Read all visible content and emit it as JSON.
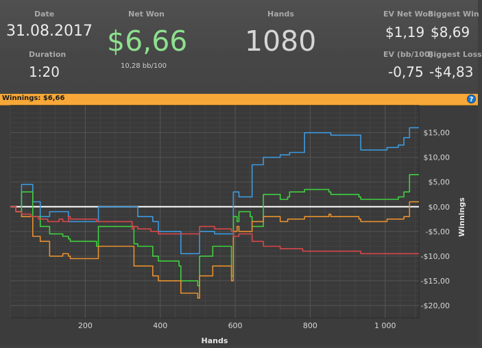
{
  "stats": {
    "date_label": "Date",
    "date_value": "31.08.2017",
    "duration_label": "Duration",
    "duration_value": "1:20",
    "net_won_label": "Net Won",
    "net_won_value": "$6,66",
    "net_won_sub": "10,28 bb/100",
    "hands_label": "Hands",
    "hands_value": "1080",
    "ev_net_won_label": "EV Net Won",
    "ev_net_won_value": "$1,19",
    "biggest_win_label": "Biggest Win",
    "biggest_win_value": "$8,69",
    "ev_bb_label": "EV (bb/100)",
    "ev_bb_value": "-0,75",
    "biggest_loss_label": "Biggest Loss",
    "biggest_loss_value": "-$4,83"
  },
  "winnings_bar": {
    "label": "Winnings: $6,66",
    "help_icon": "question-icon",
    "color": "#f7a838"
  },
  "colors": {
    "net_won": "#8ee08e",
    "blue": "#3d9ae0",
    "green": "#3fd13f",
    "orange": "#e8912f",
    "red": "#d9474a",
    "zero_line": "#ffffff"
  },
  "chart_data": {
    "type": "line",
    "xlabel": "Hands",
    "ylabel": "Winnings",
    "xlim": [
      0,
      1090
    ],
    "ylim": [
      -22.5,
      20.5
    ],
    "x_ticks": [
      200,
      400,
      600,
      800,
      1000
    ],
    "x_tick_labels": [
      "200",
      "400",
      "600",
      "800",
      "1 000"
    ],
    "y_ticks": [
      15,
      10,
      5,
      0,
      -5,
      -10,
      -15,
      -20
    ],
    "y_tick_labels": [
      "$15,00",
      "$10,00",
      "$5,00",
      "$0,00",
      "-$5,00",
      "-$10,00",
      "-$15,00",
      "-$20,00"
    ],
    "grid": true,
    "series": [
      {
        "color": "#3d9ae0",
        "points": [
          [
            0,
            0
          ],
          [
            15,
            -1
          ],
          [
            30,
            4.5
          ],
          [
            55,
            4.5
          ],
          [
            60,
            1
          ],
          [
            75,
            1
          ],
          [
            80,
            -2
          ],
          [
            100,
            -2
          ],
          [
            105,
            -1
          ],
          [
            130,
            -1
          ],
          [
            140,
            -1
          ],
          [
            155,
            -3
          ],
          [
            160,
            -3
          ],
          [
            230,
            -3
          ],
          [
            235,
            0
          ],
          [
            325,
            0
          ],
          [
            330,
            0
          ],
          [
            340,
            -2
          ],
          [
            375,
            -2
          ],
          [
            380,
            -3
          ],
          [
            390,
            -3
          ],
          [
            395,
            -5
          ],
          [
            450,
            -5
          ],
          [
            455,
            -9.5
          ],
          [
            500,
            -9.5
          ],
          [
            505,
            -5
          ],
          [
            540,
            -5
          ],
          [
            545,
            -5.5
          ],
          [
            590,
            -5.5
          ],
          [
            595,
            3
          ],
          [
            605,
            3
          ],
          [
            610,
            2
          ],
          [
            640,
            2
          ],
          [
            645,
            8.5
          ],
          [
            670,
            8.5
          ],
          [
            675,
            10
          ],
          [
            715,
            10
          ],
          [
            720,
            10.5
          ],
          [
            740,
            10.5
          ],
          [
            745,
            11
          ],
          [
            780,
            11
          ],
          [
            785,
            15
          ],
          [
            850,
            15
          ],
          [
            855,
            14.5
          ],
          [
            930,
            14.5
          ],
          [
            935,
            11.5
          ],
          [
            1000,
            11.5
          ],
          [
            1005,
            12
          ],
          [
            1030,
            12
          ],
          [
            1035,
            12.5
          ],
          [
            1045,
            12.5
          ],
          [
            1050,
            14
          ],
          [
            1060,
            14
          ],
          [
            1065,
            16
          ],
          [
            1090,
            16
          ]
        ]
      },
      {
        "color": "#3fd13f",
        "points": [
          [
            0,
            0
          ],
          [
            15,
            -1
          ],
          [
            30,
            3
          ],
          [
            55,
            3
          ],
          [
            60,
            -2
          ],
          [
            75,
            -2
          ],
          [
            80,
            -4
          ],
          [
            100,
            -4
          ],
          [
            105,
            -5.5
          ],
          [
            130,
            -5.5
          ],
          [
            140,
            -6
          ],
          [
            155,
            -6.5
          ],
          [
            160,
            -7
          ],
          [
            230,
            -8
          ],
          [
            235,
            -4
          ],
          [
            325,
            -4
          ],
          [
            330,
            -7.5
          ],
          [
            340,
            -8
          ],
          [
            375,
            -8
          ],
          [
            380,
            -10
          ],
          [
            390,
            -10
          ],
          [
            395,
            -11
          ],
          [
            450,
            -12
          ],
          [
            455,
            -15
          ],
          [
            500,
            -16
          ],
          [
            505,
            -10
          ],
          [
            540,
            -8
          ],
          [
            545,
            -8
          ],
          [
            590,
            -14
          ],
          [
            595,
            -2
          ],
          [
            605,
            -3
          ],
          [
            610,
            -1
          ],
          [
            640,
            -2
          ],
          [
            645,
            -4
          ],
          [
            670,
            -4
          ],
          [
            675,
            2.5
          ],
          [
            715,
            2.5
          ],
          [
            720,
            1.5
          ],
          [
            740,
            2
          ],
          [
            745,
            3
          ],
          [
            780,
            3
          ],
          [
            785,
            3.5
          ],
          [
            850,
            3
          ],
          [
            855,
            2.5
          ],
          [
            930,
            2
          ],
          [
            935,
            1.5
          ],
          [
            1000,
            1.5
          ],
          [
            1005,
            1.5
          ],
          [
            1030,
            1.5
          ],
          [
            1035,
            2
          ],
          [
            1045,
            2
          ],
          [
            1050,
            3
          ],
          [
            1060,
            3
          ],
          [
            1065,
            6.5
          ],
          [
            1090,
            6.5
          ]
        ]
      },
      {
        "color": "#e8912f",
        "points": [
          [
            0,
            0
          ],
          [
            15,
            -1
          ],
          [
            30,
            -2
          ],
          [
            55,
            -2
          ],
          [
            60,
            -6
          ],
          [
            75,
            -6
          ],
          [
            80,
            -7
          ],
          [
            100,
            -7
          ],
          [
            105,
            -10
          ],
          [
            130,
            -10
          ],
          [
            140,
            -9.5
          ],
          [
            155,
            -10
          ],
          [
            160,
            -10.5
          ],
          [
            230,
            -10.5
          ],
          [
            235,
            -8
          ],
          [
            325,
            -8
          ],
          [
            330,
            -12
          ],
          [
            340,
            -12
          ],
          [
            375,
            -12
          ],
          [
            380,
            -14
          ],
          [
            390,
            -14
          ],
          [
            395,
            -15
          ],
          [
            450,
            -15
          ],
          [
            455,
            -17.5
          ],
          [
            500,
            -18.5
          ],
          [
            505,
            -14
          ],
          [
            540,
            -12
          ],
          [
            545,
            -12
          ],
          [
            590,
            -15
          ],
          [
            595,
            -5
          ],
          [
            605,
            -4
          ],
          [
            610,
            -5
          ],
          [
            640,
            -5
          ],
          [
            645,
            -3
          ],
          [
            670,
            -3
          ],
          [
            675,
            -2
          ],
          [
            715,
            -2
          ],
          [
            720,
            -3
          ],
          [
            740,
            -2.5
          ],
          [
            745,
            -2.5
          ],
          [
            780,
            -2.5
          ],
          [
            785,
            -2
          ],
          [
            850,
            -1.5
          ],
          [
            855,
            -2
          ],
          [
            930,
            -2.5
          ],
          [
            935,
            -3
          ],
          [
            1000,
            -3
          ],
          [
            1005,
            -2.5
          ],
          [
            1030,
            -2.5
          ],
          [
            1035,
            -2.5
          ],
          [
            1045,
            -2.5
          ],
          [
            1050,
            -2
          ],
          [
            1060,
            -2
          ],
          [
            1065,
            1
          ],
          [
            1090,
            1
          ]
        ]
      },
      {
        "color": "#d9474a",
        "points": [
          [
            0,
            0
          ],
          [
            15,
            -1
          ],
          [
            30,
            -1.5
          ],
          [
            55,
            -2
          ],
          [
            60,
            -2
          ],
          [
            75,
            -2.5
          ],
          [
            80,
            -2.5
          ],
          [
            100,
            -3
          ],
          [
            105,
            -3
          ],
          [
            130,
            -2.5
          ],
          [
            140,
            -3
          ],
          [
            155,
            -2
          ],
          [
            160,
            -2.5
          ],
          [
            230,
            -3
          ],
          [
            235,
            -3
          ],
          [
            325,
            -4.5
          ],
          [
            330,
            -4
          ],
          [
            340,
            -4.5
          ],
          [
            375,
            -5
          ],
          [
            380,
            -5
          ],
          [
            390,
            -5
          ],
          [
            395,
            -5.5
          ],
          [
            450,
            -5.5
          ],
          [
            455,
            -5.5
          ],
          [
            500,
            -5.5
          ],
          [
            505,
            -4
          ],
          [
            540,
            -4
          ],
          [
            545,
            -4.5
          ],
          [
            590,
            -5
          ],
          [
            595,
            -6
          ],
          [
            605,
            -6
          ],
          [
            610,
            -5.5
          ],
          [
            640,
            -5.5
          ],
          [
            645,
            -7
          ],
          [
            670,
            -7
          ],
          [
            675,
            -8
          ],
          [
            715,
            -8
          ],
          [
            720,
            -8.5
          ],
          [
            740,
            -8.5
          ],
          [
            745,
            -8.5
          ],
          [
            780,
            -9
          ],
          [
            785,
            -9
          ],
          [
            850,
            -9
          ],
          [
            855,
            -9
          ],
          [
            930,
            -9
          ],
          [
            935,
            -9.5
          ],
          [
            1000,
            -9.5
          ],
          [
            1005,
            -9.5
          ],
          [
            1030,
            -9.5
          ],
          [
            1035,
            -9.5
          ],
          [
            1045,
            -9.5
          ],
          [
            1050,
            -9.5
          ],
          [
            1060,
            -9.5
          ],
          [
            1065,
            -9.5
          ],
          [
            1090,
            -9.5
          ]
        ]
      }
    ]
  }
}
